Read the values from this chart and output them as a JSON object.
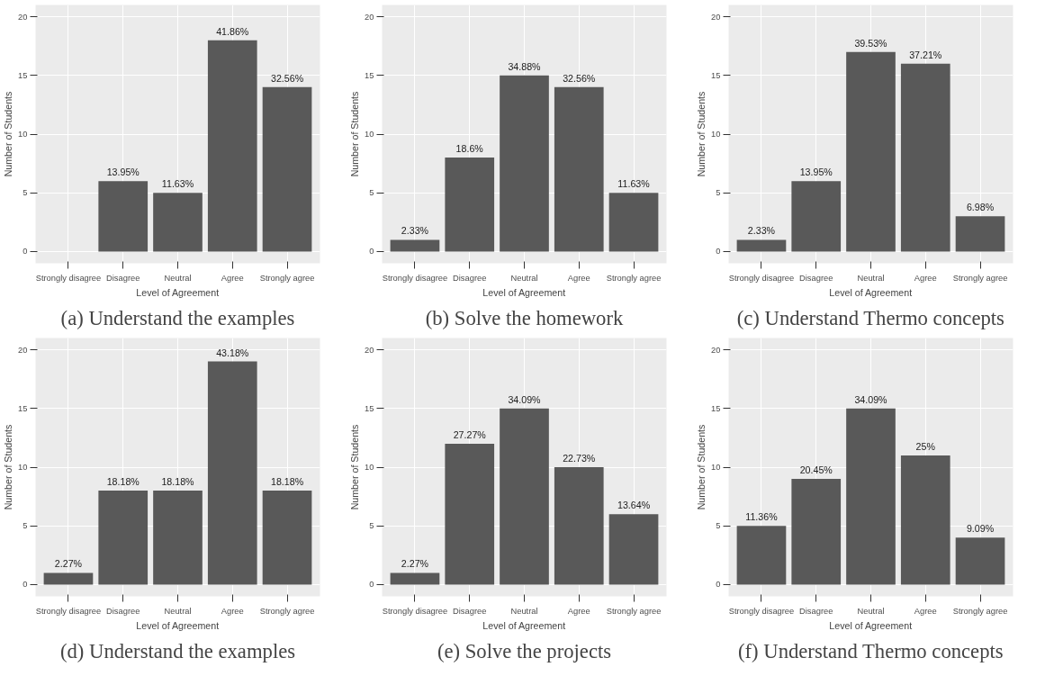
{
  "chart_data": [
    {
      "type": "bar",
      "title": "(a) Understand the examples",
      "xlabel": "Level of Agreement",
      "ylabel": "Number of Students",
      "categories": [
        "Strongly disagree",
        "Disagree",
        "Neutral",
        "Agree",
        "Strongly agree"
      ],
      "values": [
        0,
        6,
        5,
        18,
        14
      ],
      "color": "#595959",
      "ylim": [
        -1,
        21
      ],
      "yticks": [
        0,
        5,
        10,
        15,
        20
      ],
      "grid": true,
      "annotations": [
        {
          "text": "13.95%",
          "x": "Disagree",
          "y": 6
        },
        {
          "text": "11.63%",
          "x": "Neutral",
          "y": 5
        },
        {
          "text": "41.86%",
          "x": "Agree",
          "y": 18
        },
        {
          "text": "32.56%",
          "x": "Strongly agree",
          "y": 14
        }
      ]
    },
    {
      "type": "bar",
      "title": "(b) Solve the homework",
      "xlabel": "Level of Agreement",
      "ylabel": "Number of Students",
      "categories": [
        "Strongly disagree",
        "Disagree",
        "Neutral",
        "Agree",
        "Strongly agree"
      ],
      "values": [
        1,
        8,
        15,
        14,
        5
      ],
      "color": "#595959",
      "ylim": [
        -1,
        21
      ],
      "yticks": [
        0,
        5,
        10,
        15,
        20
      ],
      "grid": true,
      "annotations": [
        {
          "text": "2.33%",
          "x": "Strongly disagree",
          "y": 1
        },
        {
          "text": "18.6%",
          "x": "Disagree",
          "y": 8
        },
        {
          "text": "34.88%",
          "x": "Neutral",
          "y": 15
        },
        {
          "text": "32.56%",
          "x": "Agree",
          "y": 14
        },
        {
          "text": "11.63%",
          "x": "Strongly agree",
          "y": 5
        }
      ]
    },
    {
      "type": "bar",
      "title": "(c) Understand Thermo concepts",
      "xlabel": "Level of Agreement",
      "ylabel": "Number of Students",
      "categories": [
        "Strongly disagree",
        "Disagree",
        "Neutral",
        "Agree",
        "Strongly agree"
      ],
      "values": [
        1,
        6,
        17,
        16,
        3
      ],
      "color": "#595959",
      "ylim": [
        -1,
        21
      ],
      "yticks": [
        0,
        5,
        10,
        15,
        20
      ],
      "grid": true,
      "annotations": [
        {
          "text": "2.33%",
          "x": "Strongly disagree",
          "y": 1
        },
        {
          "text": "13.95%",
          "x": "Disagree",
          "y": 6
        },
        {
          "text": "39.53%",
          "x": "Neutral",
          "y": 17
        },
        {
          "text": "37.21%",
          "x": "Agree",
          "y": 16
        },
        {
          "text": "6.98%",
          "x": "Strongly agree",
          "y": 3
        }
      ]
    },
    {
      "type": "bar",
      "title": "(d) Understand the examples",
      "xlabel": "Level of Agreement",
      "ylabel": "Number of Students",
      "categories": [
        "Strongly disagree",
        "Disagree",
        "Neutral",
        "Agree",
        "Strongly agree"
      ],
      "values": [
        1,
        8,
        8,
        19,
        8
      ],
      "color": "#595959",
      "ylim": [
        -1,
        21
      ],
      "yticks": [
        0,
        5,
        10,
        15,
        20
      ],
      "grid": true,
      "annotations": [
        {
          "text": "2.27%",
          "x": "Strongly disagree",
          "y": 1
        },
        {
          "text": "18.18%",
          "x": "Disagree",
          "y": 8
        },
        {
          "text": "18.18%",
          "x": "Neutral",
          "y": 8
        },
        {
          "text": "43.18%",
          "x": "Agree",
          "y": 19
        },
        {
          "text": "18.18%",
          "x": "Strongly agree",
          "y": 8
        }
      ]
    },
    {
      "type": "bar",
      "title": "(e) Solve the projects",
      "xlabel": "Level of Agreement",
      "ylabel": "Number of Students",
      "categories": [
        "Strongly disagree",
        "Disagree",
        "Neutral",
        "Agree",
        "Strongly agree"
      ],
      "values": [
        1,
        12,
        15,
        10,
        6
      ],
      "color": "#595959",
      "ylim": [
        -1,
        21
      ],
      "yticks": [
        0,
        5,
        10,
        15,
        20
      ],
      "grid": true,
      "annotations": [
        {
          "text": "2.27%",
          "x": "Strongly disagree",
          "y": 1
        },
        {
          "text": "27.27%",
          "x": "Disagree",
          "y": 12
        },
        {
          "text": "34.09%",
          "x": "Neutral",
          "y": 15
        },
        {
          "text": "22.73%",
          "x": "Agree",
          "y": 10
        },
        {
          "text": "13.64%",
          "x": "Strongly agree",
          "y": 6
        }
      ]
    },
    {
      "type": "bar",
      "title": "(f) Understand Thermo concepts",
      "xlabel": "Level of Agreement",
      "ylabel": "Number of Students",
      "categories": [
        "Strongly disagree",
        "Disagree",
        "Neutral",
        "Agree",
        "Strongly agree"
      ],
      "values": [
        5,
        9,
        15,
        11,
        4
      ],
      "color": "#595959",
      "ylim": [
        -1,
        21
      ],
      "yticks": [
        0,
        5,
        10,
        15,
        20
      ],
      "grid": true,
      "annotations": [
        {
          "text": "11.36%",
          "x": "Strongly disagree",
          "y": 5
        },
        {
          "text": "20.45%",
          "x": "Disagree",
          "y": 9
        },
        {
          "text": "34.09%",
          "x": "Neutral",
          "y": 15
        },
        {
          "text": "25%",
          "x": "Agree",
          "y": 11
        },
        {
          "text": "9.09%",
          "x": "Strongly agree",
          "y": 4
        }
      ]
    }
  ]
}
